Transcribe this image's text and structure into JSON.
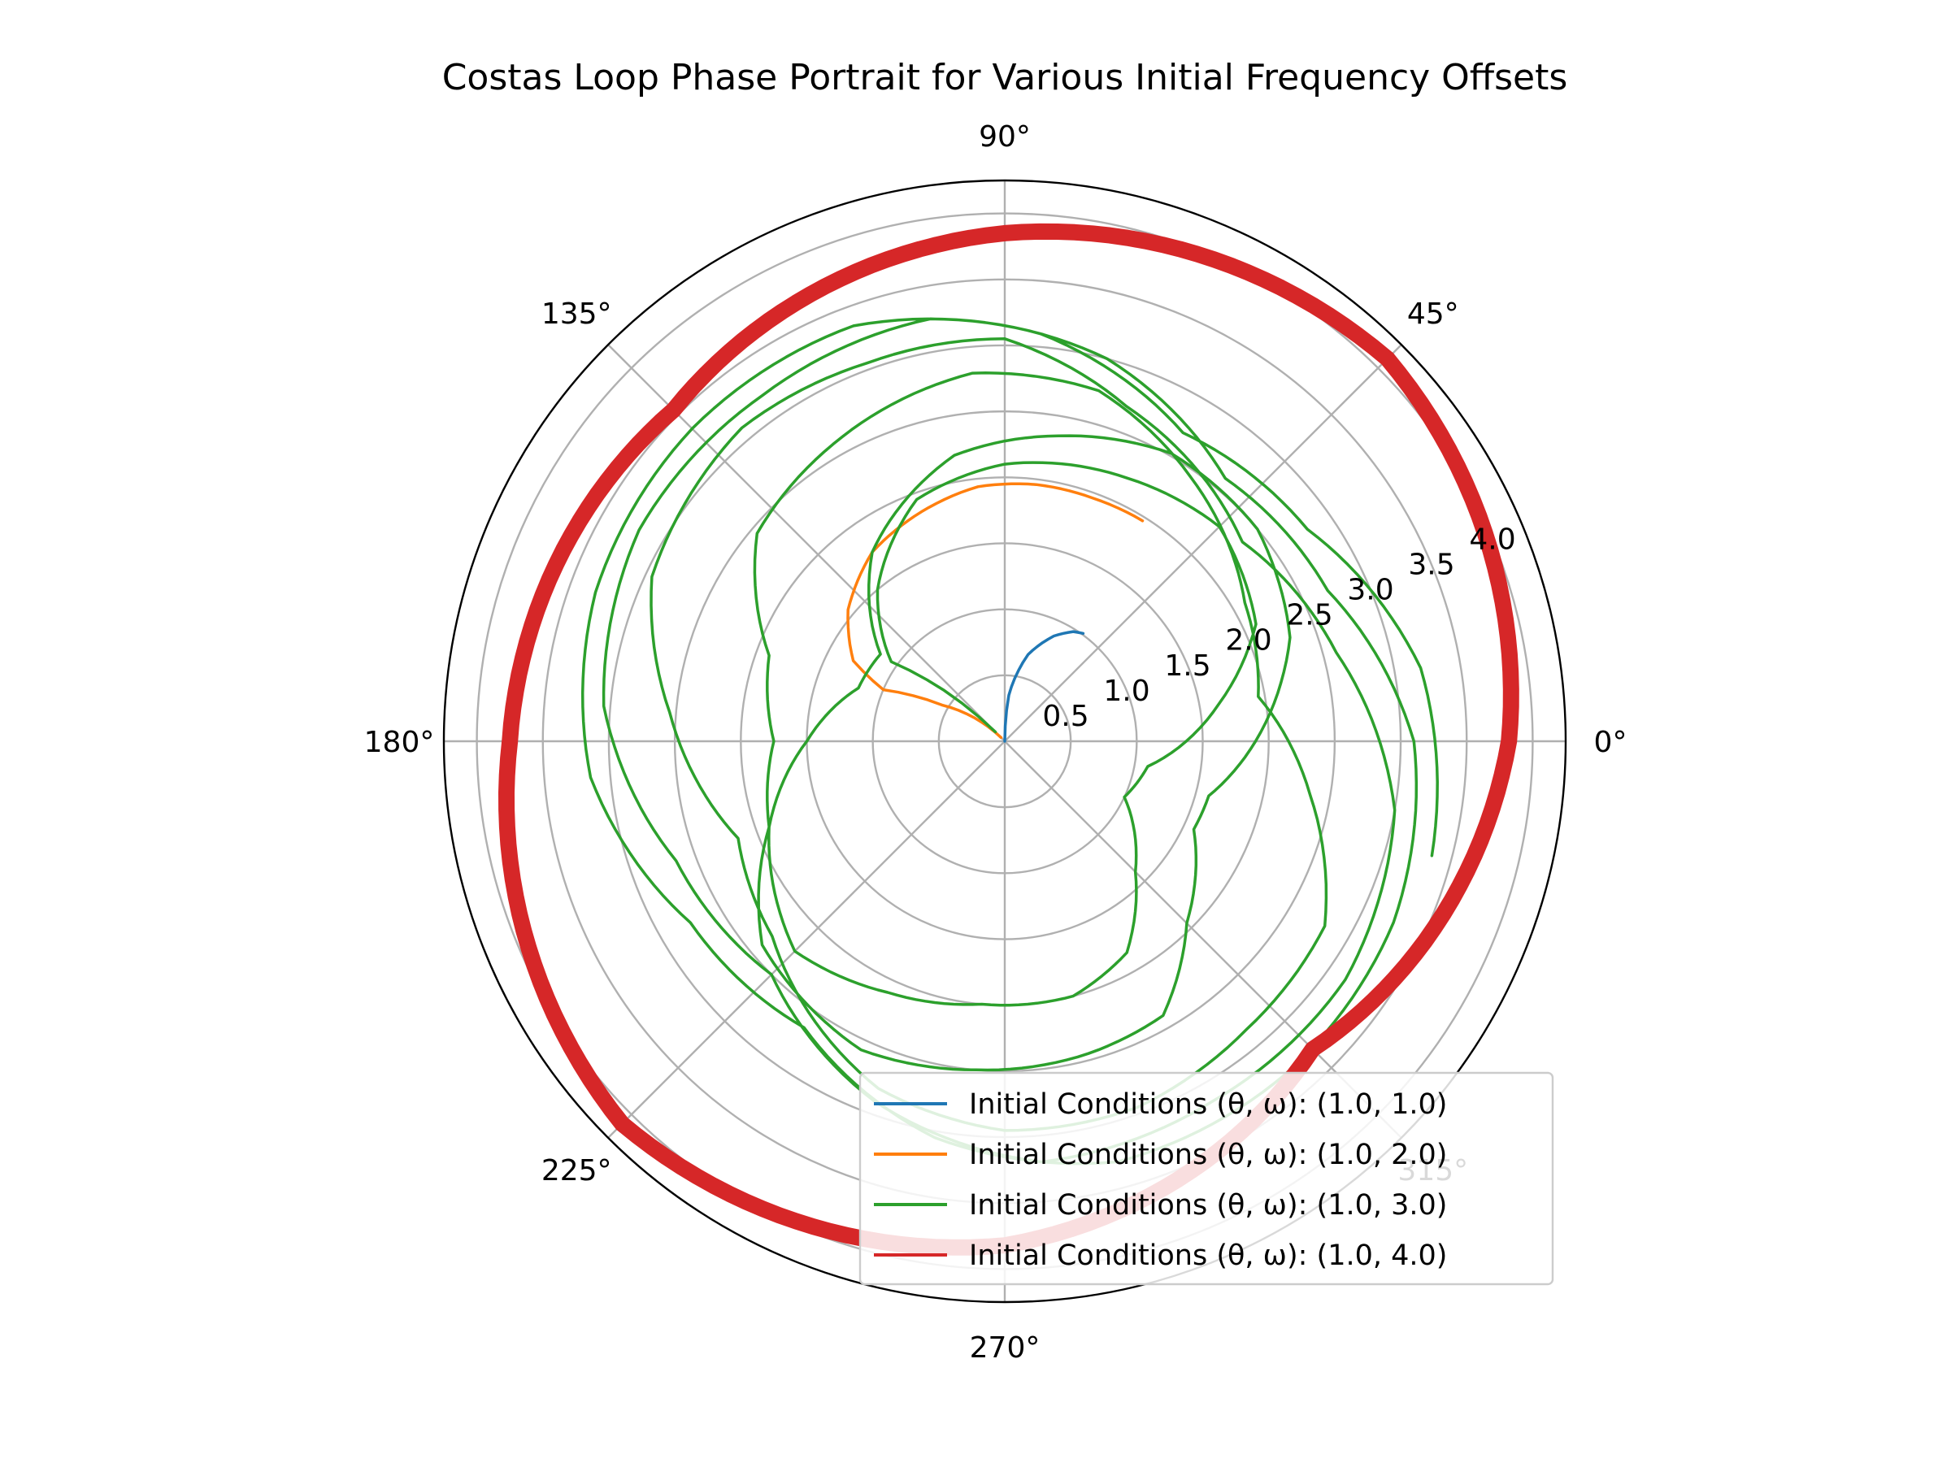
{
  "chart_data": {
    "type": "line",
    "projection": "polar",
    "title": "Costas Loop Phase Portrait for Various Initial Frequency Offsets",
    "theta_ticks": [
      "0°",
      "45°",
      "90°",
      "135°",
      "180°",
      "225°",
      "270°",
      "315°"
    ],
    "r_ticks": [
      "0.5",
      "1.0",
      "1.5",
      "2.0",
      "2.5",
      "3.0",
      "3.5",
      "4.0"
    ],
    "rlim": [
      0,
      4.25
    ],
    "rlabel_position_deg": 22.5,
    "grid": true,
    "legend_position": "lower-right",
    "colors": {
      "blue": "#1f77b4",
      "orange": "#ff7f0e",
      "green": "#2ca02c",
      "red": "#d62728",
      "grid": "#b0b0b0"
    },
    "series": [
      {
        "name": "Initial Conditions (θ, ω): (1.0, 1.0)",
        "color": "#1f77b4",
        "points": [
          [
            90,
            0.0
          ],
          [
            85,
            0.35
          ],
          [
            75,
            0.68
          ],
          [
            65,
            0.88
          ],
          [
            58,
            0.98
          ],
          [
            54,
            1.01
          ]
        ]
      },
      {
        "name": "Initial Conditions (θ, ω): (1.0, 2.0)",
        "color": "#ff7f0e",
        "points": [
          [
            135,
            0.04
          ],
          [
            150,
            0.55
          ],
          [
            157,
            1.0
          ],
          [
            152,
            1.3
          ],
          [
            140,
            1.55
          ],
          [
            125,
            1.75
          ],
          [
            110,
            1.85
          ],
          [
            96,
            1.94
          ],
          [
            83,
            1.96
          ],
          [
            70,
            1.96
          ],
          [
            58,
            1.97
          ]
        ]
      },
      {
        "name": "Initial Conditions (θ, ω): (1.0, 3.0)",
        "color": "#2ca02c",
        "points": [
          [
            135,
            0.1
          ],
          [
            140,
            0.6
          ],
          [
            145,
            1.05
          ],
          [
            130,
            1.5
          ],
          [
            110,
            1.95
          ],
          [
            90,
            2.1
          ],
          [
            65,
            2.2
          ],
          [
            45,
            2.3
          ],
          [
            25,
            2.1
          ],
          [
            10,
            1.65
          ],
          [
            -10,
            1.1
          ],
          [
            -25,
            1.0
          ],
          [
            -45,
            1.4
          ],
          [
            -60,
            1.85
          ],
          [
            -75,
            2.0
          ],
          [
            -95,
            2.0
          ],
          [
            -115,
            2.1
          ],
          [
            -135,
            2.25
          ],
          [
            -160,
            1.9
          ],
          [
            -180,
            1.5
          ],
          [
            -200,
            1.18
          ],
          [
            -215,
            1.15
          ],
          [
            -235,
            1.75
          ],
          [
            -260,
            2.2
          ],
          [
            -280,
            2.35
          ],
          [
            -300,
            2.52
          ],
          [
            -320,
            2.5
          ],
          [
            -340,
            2.3
          ],
          [
            -360,
            1.9
          ],
          [
            -375,
            1.6
          ],
          [
            -385,
            1.58
          ],
          [
            -405,
            1.95
          ],
          [
            -420,
            2.4
          ],
          [
            -435,
            2.45
          ],
          [
            -455,
            2.5
          ],
          [
            -475,
            2.58
          ],
          [
            -500,
            2.4
          ],
          [
            -520,
            1.9
          ],
          [
            -540,
            1.75
          ],
          [
            -560,
            1.9
          ],
          [
            -580,
            2.45
          ],
          [
            -600,
            2.6
          ],
          [
            -625,
            2.8
          ],
          [
            -645,
            2.75
          ],
          [
            -665,
            2.45
          ],
          [
            -690,
            2.1
          ],
          [
            -710,
            1.95
          ],
          [
            -730,
            2.35
          ],
          [
            -750,
            2.8
          ],
          [
            -770,
            2.85
          ],
          [
            -790,
            2.95
          ],
          [
            -810,
            2.95
          ],
          [
            -830,
            2.8
          ],
          [
            -860,
            2.3
          ],
          [
            -880,
            2.15
          ],
          [
            -905,
            2.55
          ],
          [
            -925,
            2.95
          ],
          [
            -950,
            3.1
          ],
          [
            -970,
            3.05
          ],
          [
            -990,
            3.05
          ],
          [
            -1010,
            2.7
          ],
          [
            -1040,
            2.35
          ],
          [
            -1065,
            2.6
          ],
          [
            -1090,
            3.0
          ],
          [
            -1115,
            3.15
          ],
          [
            -1140,
            3.15
          ],
          [
            -1165,
            3.2
          ],
          [
            -1190,
            2.9
          ],
          [
            -1215,
            2.5
          ],
          [
            -1240,
            2.65
          ],
          [
            -1265,
            3.05
          ],
          [
            -1290,
            3.2
          ],
          [
            -1315,
            3.2
          ],
          [
            -1340,
            3.25
          ],
          [
            -1365,
            3.0
          ],
          [
            -1390,
            2.6
          ],
          [
            -1415,
            2.7
          ],
          [
            -1440,
            3.1
          ],
          [
            -1465,
            3.25
          ],
          [
            -1490,
            3.3
          ],
          [
            -1515,
            3.3
          ],
          [
            -1540,
            3.05
          ],
          [
            -1565,
            2.65
          ],
          [
            -1590,
            2.75
          ],
          [
            -1615,
            3.15
          ],
          [
            -1640,
            3.3
          ],
          [
            -1665,
            3.35
          ],
          [
            -1690,
            3.35
          ],
          [
            -1715,
            3.1
          ],
          [
            -1740,
            2.7
          ],
          [
            -1765,
            2.8
          ],
          [
            -1790,
            3.2
          ],
          [
            -1815,
            3.35
          ]
        ]
      },
      {
        "name": "Initial Conditions (θ, ω): (1.0, 4.0)",
        "color": "#d62728",
        "points": [
          [
            0,
            3.82
          ],
          [
            45,
            4.1
          ],
          [
            90,
            3.85
          ],
          [
            135,
            3.55
          ],
          [
            180,
            3.75
          ],
          [
            225,
            4.1
          ],
          [
            270,
            3.82
          ],
          [
            315,
            3.3
          ],
          [
            360,
            3.82
          ]
        ]
      }
    ]
  }
}
